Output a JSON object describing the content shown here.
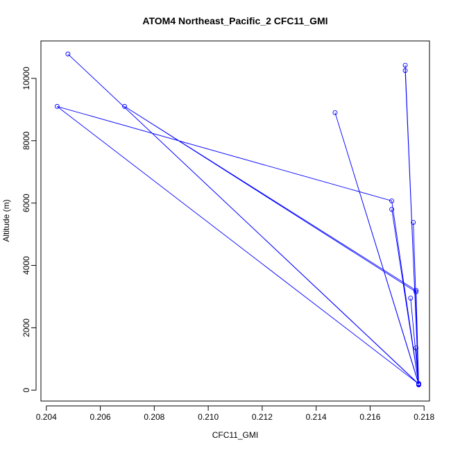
{
  "chart_data": {
    "type": "line",
    "title": "ATOM4 Northeast_Pacific_2 CFC11_GMI",
    "xlabel": "CFC11_GMI",
    "ylabel": "Altitude (m)",
    "xlim": [
      0.2038,
      0.2182
    ],
    "ylim": [
      -350,
      11200
    ],
    "xticks": [
      0.204,
      0.206,
      0.208,
      0.21,
      0.212,
      0.214,
      0.216,
      0.218
    ],
    "xtick_labels": [
      "0.204",
      "0.206",
      "0.208",
      "0.210",
      "0.212",
      "0.214",
      "0.216",
      "0.218"
    ],
    "yticks": [
      0,
      2000,
      4000,
      6000,
      8000,
      10000
    ],
    "ytick_labels": [
      "0",
      "2000",
      "4000",
      "6000",
      "8000",
      "10000"
    ],
    "grid": false,
    "legend": "none",
    "marker": "open-circle",
    "color": "#0000ff",
    "series": [
      {
        "x": [
          0.2178,
          0.2178,
          0.2173,
          0.2173,
          0.2178,
          0.2178,
          0.2176,
          0.2178,
          0.2178,
          0.2168,
          0.2178,
          0.2178,
          0.2147,
          0.2178,
          0.2175,
          0.2178,
          0.2177,
          0.2069,
          0.2177,
          0.2178,
          0.2168,
          0.2044,
          0.2178,
          0.2178,
          0.2048,
          0.2178,
          0.2177,
          0.2178
        ],
        "y": [
          200,
          180,
          10420,
          10250,
          210,
          190,
          5380,
          170,
          200,
          5800,
          180,
          210,
          8900,
          190,
          2950,
          180,
          3200,
          9100,
          3150,
          180,
          6070,
          9100,
          200,
          190,
          10780,
          200,
          1350,
          180
        ]
      }
    ]
  }
}
